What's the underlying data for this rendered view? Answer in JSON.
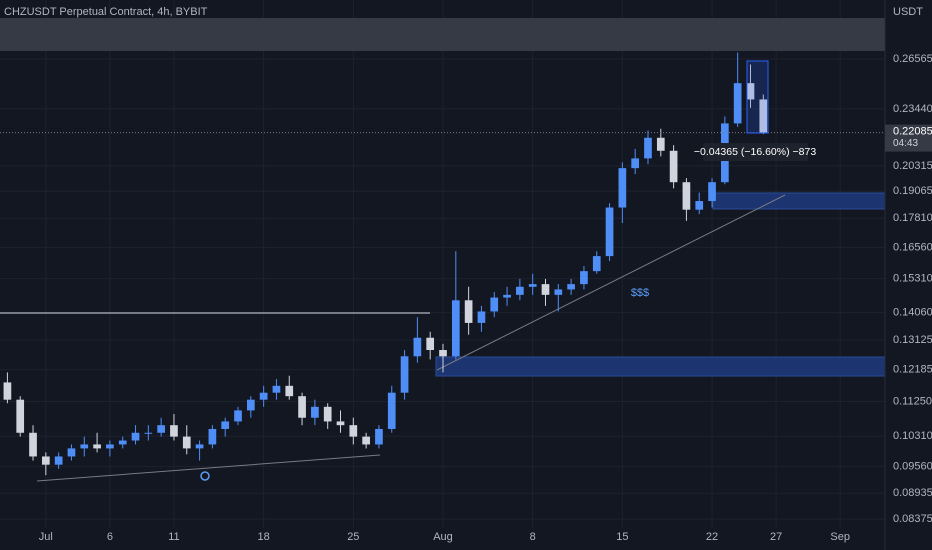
{
  "chart_data": {
    "type": "candlestick",
    "title": "CHZUSDT Perpetual Contract, 4h, BYBIT",
    "y_axis_label": "USDT",
    "categories": [
      null,
      null,
      null,
      "Jul",
      null,
      null,
      null,
      null,
      "6",
      null,
      null,
      null,
      null,
      "11",
      null,
      null,
      null,
      null,
      null,
      null,
      "18",
      null,
      null,
      null,
      null,
      null,
      null,
      "25",
      null,
      null,
      null,
      null,
      null,
      null,
      "Aug",
      null,
      null,
      null,
      null,
      null,
      null,
      "8",
      null,
      null,
      null,
      null,
      null,
      null,
      "15",
      null,
      null,
      null,
      null,
      null,
      null,
      "22",
      null,
      null,
      null,
      null,
      "27",
      null,
      null,
      null,
      null,
      "Sep",
      null,
      null,
      null
    ],
    "open": [
      0.118,
      0.113,
      0.104,
      0.098,
      0.096,
      0.098,
      0.1,
      0.101,
      0.1,
      0.101,
      0.102,
      0.104,
      0.104,
      0.106,
      0.103,
      0.1,
      0.101,
      0.105,
      0.107,
      0.11,
      0.113,
      0.115,
      0.117,
      0.114,
      0.108,
      0.111,
      0.107,
      0.106,
      0.103,
      0.101,
      0.105,
      0.115,
      0.126,
      0.132,
      0.128,
      0.126,
      0.145,
      0.137,
      0.141,
      0.146,
      0.147,
      0.15,
      0.151,
      0.147,
      0.149,
      0.151,
      0.156,
      0.162,
      0.183,
      0.202,
      0.207,
      0.218,
      0.211,
      0.195,
      0.182,
      0.186,
      0.195,
      0.226,
      0.25,
      0.24,
      null,
      null,
      null,
      null,
      null,
      null,
      null,
      null,
      null
    ],
    "high": [
      0.121,
      0.114,
      0.106,
      0.099,
      0.099,
      0.101,
      0.103,
      0.104,
      0.102,
      0.103,
      0.106,
      0.106,
      0.108,
      0.109,
      0.106,
      0.102,
      0.106,
      0.108,
      0.111,
      0.114,
      0.117,
      0.119,
      0.12,
      0.115,
      0.113,
      0.112,
      0.11,
      0.108,
      0.104,
      0.106,
      0.117,
      0.128,
      0.139,
      0.134,
      0.13,
      0.164,
      0.15,
      0.143,
      0.148,
      0.15,
      0.153,
      0.155,
      0.153,
      0.151,
      0.153,
      0.158,
      0.164,
      0.185,
      0.205,
      0.212,
      0.222,
      0.223,
      0.214,
      0.197,
      0.19,
      0.197,
      0.23,
      0.27,
      0.262,
      0.243,
      null,
      null,
      null,
      null,
      null,
      null,
      null,
      null,
      null
    ],
    "low": [
      0.112,
      0.103,
      0.097,
      0.0935,
      0.095,
      0.097,
      0.098,
      0.099,
      0.098,
      0.1,
      0.101,
      0.102,
      0.103,
      0.102,
      0.0985,
      0.097,
      0.1,
      0.103,
      0.106,
      0.108,
      0.111,
      0.113,
      0.113,
      0.106,
      0.106,
      0.105,
      0.104,
      0.101,
      0.1,
      0.1,
      0.104,
      0.113,
      0.124,
      0.125,
      0.121,
      0.125,
      0.133,
      0.134,
      0.139,
      0.143,
      0.145,
      0.147,
      0.143,
      0.141,
      0.147,
      0.149,
      0.155,
      0.16,
      0.176,
      0.199,
      0.204,
      0.208,
      0.192,
      0.177,
      0.18,
      0.183,
      0.194,
      0.224,
      0.235,
      0.22,
      null,
      null,
      null,
      null,
      null,
      null,
      null,
      null,
      null
    ],
    "close": [
      0.113,
      0.104,
      0.098,
      0.096,
      0.098,
      0.1,
      0.101,
      0.1,
      0.101,
      0.102,
      0.104,
      0.104,
      0.106,
      0.103,
      0.1,
      0.101,
      0.105,
      0.107,
      0.11,
      0.113,
      0.115,
      0.117,
      0.114,
      0.108,
      0.111,
      0.107,
      0.106,
      0.103,
      0.101,
      0.105,
      0.115,
      0.126,
      0.132,
      0.128,
      0.126,
      0.145,
      0.137,
      0.141,
      0.146,
      0.147,
      0.15,
      0.151,
      0.147,
      0.149,
      0.151,
      0.156,
      0.162,
      0.183,
      0.202,
      0.207,
      0.218,
      0.211,
      0.195,
      0.182,
      0.186,
      0.195,
      0.226,
      0.25,
      0.24,
      0.22085,
      null,
      null,
      null,
      null,
      null,
      null,
      null,
      null,
      null
    ],
    "up_color": "#4f8ef7",
    "down_color": "#d1d4dc",
    "log_scale": true,
    "grid": true,
    "ylim": [
      0.0819,
      0.308
    ],
    "yticks": [
      0.26565,
      {
        "value": 0.2344,
        "label": "0.23440"
      },
      0.20315,
      0.19065,
      {
        "value": 0.1781,
        "label": "0.17810"
      },
      {
        "value": 0.1656,
        "label": "0.16560"
      },
      {
        "value": 0.1531,
        "label": "0.15310"
      },
      {
        "value": 0.1406,
        "label": "0.14060"
      },
      0.13125,
      0.12185,
      {
        "value": 0.1125,
        "label": "0.11250"
      },
      {
        "value": 0.1031,
        "label": "0.10310"
      },
      {
        "value": 0.0956,
        "label": "0.09560"
      },
      0.08935,
      0.08375
    ],
    "countdown": "04:43",
    "measure_label": "−0.04365 (−16.60%) −873",
    "liquidity_label": "$$$"
  }
}
